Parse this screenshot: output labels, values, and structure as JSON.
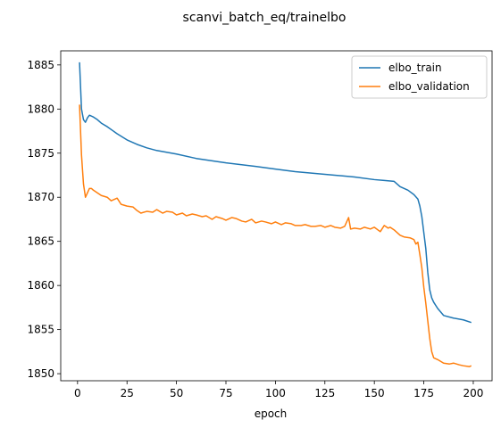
{
  "chart_data": {
    "type": "line",
    "title": "scanvi_batch_eq/trainelbo",
    "xlabel": "epoch",
    "ylabel": "",
    "xlim": [
      -8.5,
      209.5
    ],
    "ylim": [
      1849.2,
      1886.6
    ],
    "xticks": [
      0,
      25,
      50,
      75,
      100,
      125,
      150,
      175,
      200
    ],
    "yticks": [
      1850,
      1855,
      1860,
      1865,
      1870,
      1875,
      1880,
      1885
    ],
    "grid": false,
    "legend": "top-right",
    "series": [
      {
        "name": "elbo_train",
        "color": "#1f77b4",
        "x": [
          1,
          2,
          3,
          4,
          5,
          6,
          7,
          8,
          10,
          12,
          15,
          20,
          25,
          30,
          35,
          40,
          50,
          60,
          75,
          90,
          100,
          110,
          120,
          130,
          140,
          150,
          155,
          160,
          163,
          165,
          167,
          170,
          172,
          173,
          174,
          175,
          176,
          177,
          178,
          179,
          180,
          182,
          185,
          190,
          195,
          199
        ],
        "y": [
          1885.3,
          1880.0,
          1878.8,
          1878.5,
          1879.0,
          1879.3,
          1879.2,
          1879.1,
          1878.8,
          1878.4,
          1878.0,
          1877.2,
          1876.5,
          1876.0,
          1875.6,
          1875.3,
          1874.9,
          1874.4,
          1873.9,
          1873.5,
          1873.2,
          1872.9,
          1872.7,
          1872.5,
          1872.3,
          1872.0,
          1871.9,
          1871.8,
          1871.2,
          1871.0,
          1870.8,
          1870.3,
          1869.8,
          1869.0,
          1867.8,
          1866.0,
          1864.2,
          1861.5,
          1859.5,
          1858.6,
          1858.1,
          1857.4,
          1856.6,
          1856.3,
          1856.1,
          1855.8
        ]
      },
      {
        "name": "elbo_validation",
        "color": "#ff7f0e",
        "x": [
          1,
          2,
          3,
          4,
          5,
          6,
          7,
          8,
          10,
          12,
          15,
          17,
          20,
          22,
          25,
          28,
          30,
          32,
          35,
          38,
          40,
          43,
          45,
          48,
          50,
          53,
          55,
          58,
          60,
          63,
          65,
          68,
          70,
          73,
          75,
          78,
          80,
          83,
          85,
          88,
          90,
          93,
          95,
          98,
          100,
          103,
          105,
          108,
          110,
          113,
          115,
          118,
          120,
          123,
          125,
          128,
          130,
          133,
          135,
          137,
          138,
          140,
          143,
          145,
          148,
          150,
          153,
          155,
          157,
          158,
          160,
          163,
          165,
          168,
          170,
          171,
          172,
          173,
          174,
          175,
          176,
          177,
          178,
          179,
          180,
          182,
          185,
          188,
          190,
          193,
          195,
          198,
          199
        ],
        "y": [
          1880.5,
          1874.8,
          1871.5,
          1870.0,
          1870.5,
          1871.0,
          1871.0,
          1870.8,
          1870.5,
          1870.2,
          1870.0,
          1869.6,
          1869.9,
          1869.2,
          1869.0,
          1868.9,
          1868.5,
          1868.2,
          1868.4,
          1868.3,
          1868.6,
          1868.2,
          1868.4,
          1868.3,
          1868.0,
          1868.2,
          1867.9,
          1868.1,
          1868.0,
          1867.8,
          1867.9,
          1867.5,
          1867.8,
          1867.6,
          1867.4,
          1867.7,
          1867.6,
          1867.3,
          1867.2,
          1867.5,
          1867.1,
          1867.3,
          1867.2,
          1867.0,
          1867.2,
          1866.9,
          1867.1,
          1867.0,
          1866.8,
          1866.8,
          1866.9,
          1866.7,
          1866.7,
          1866.8,
          1866.6,
          1866.8,
          1866.6,
          1866.5,
          1866.7,
          1867.7,
          1866.4,
          1866.5,
          1866.4,
          1866.6,
          1866.4,
          1866.6,
          1866.1,
          1866.8,
          1866.5,
          1866.6,
          1866.3,
          1865.7,
          1865.5,
          1865.4,
          1865.2,
          1864.7,
          1864.9,
          1863.5,
          1862.0,
          1859.8,
          1858.0,
          1856.0,
          1854.0,
          1852.5,
          1851.8,
          1851.6,
          1851.2,
          1851.1,
          1851.2,
          1851.0,
          1850.9,
          1850.8,
          1850.9
        ]
      }
    ]
  }
}
